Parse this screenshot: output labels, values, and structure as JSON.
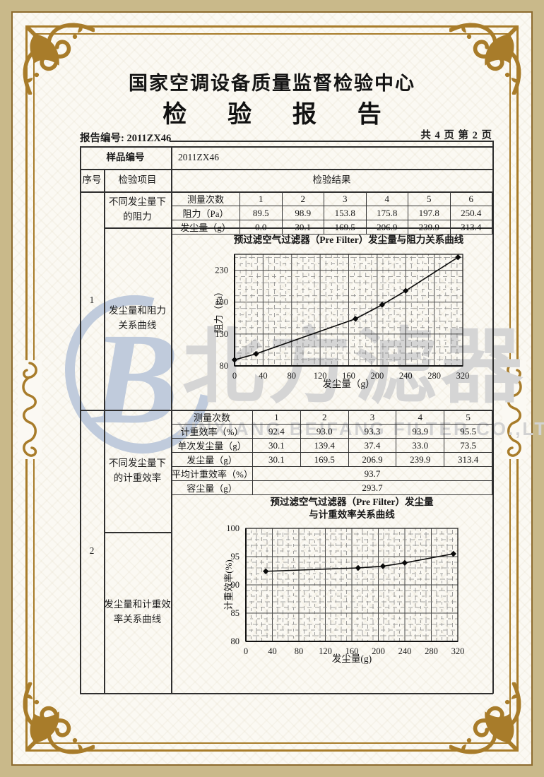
{
  "header": {
    "center_name": "国家空调设备质量监督检验中心",
    "report_title": "检 验 报 告",
    "report_no_label": "报告编号:",
    "report_no": "2011ZX46",
    "page_info": "共 4 页 第 2 页"
  },
  "sample_row": {
    "label": "样品编号",
    "value": "2011ZX46"
  },
  "columns": {
    "seq": "序号",
    "item": "检验项目",
    "result": "检验结果"
  },
  "sections": [
    {
      "seq": "1",
      "item_top": "不同发尘量下\n的阻力",
      "item_bottom": "发尘量和阻力\n关系曲线"
    },
    {
      "seq": "2",
      "item_top": "不同发尘量下\n的计重效率",
      "item_bottom": "发尘量和计重效\n率关系曲线"
    }
  ],
  "resist_table": {
    "rows": [
      {
        "label": "测量次数",
        "cells": [
          "1",
          "2",
          "3",
          "4",
          "5",
          "6"
        ]
      },
      {
        "label": "阻力（Pa）",
        "cells": [
          "89.5",
          "98.9",
          "153.8",
          "175.8",
          "197.8",
          "250.4"
        ]
      },
      {
        "label": "发尘量（g）",
        "cells": [
          "0.0",
          "30.1",
          "169.5",
          "206.9",
          "239.9",
          "313.4"
        ]
      }
    ]
  },
  "eff_table": {
    "rows": [
      {
        "label": "测量次数",
        "cells": [
          "1",
          "2",
          "3",
          "4",
          "5"
        ]
      },
      {
        "label": "计重效率（%）",
        "cells": [
          "92.4",
          "93.0",
          "93.3",
          "93.9",
          "95.5"
        ]
      },
      {
        "label": "单次发尘量（g）",
        "cells": [
          "30.1",
          "139.4",
          "37.4",
          "33.0",
          "73.5"
        ]
      },
      {
        "label": "发尘量（g）",
        "cells": [
          "30.1",
          "169.5",
          "206.9",
          "239.9",
          "313.4"
        ]
      }
    ],
    "avg_label": "平均计重效率（%）",
    "avg_value": "93.7",
    "capacity_label": "容尘量（g）",
    "capacity_value": "293.7"
  },
  "chart_data": [
    {
      "type": "line",
      "title": "预过滤空气过滤器（Pre Filter）发尘量与阻力关系曲线",
      "title_lines": [
        "预过滤空气过滤器（Pre Filter）发尘量与阻力关系曲线"
      ],
      "xlabel": "发尘量（g）",
      "ylabel": "阻力（Pa）",
      "x": [
        0,
        30.1,
        169.5,
        206.9,
        239.9,
        313.4
      ],
      "y": [
        89.5,
        98.9,
        153.8,
        175.8,
        197.8,
        250.4
      ],
      "xlim": [
        0,
        320
      ],
      "ylim": [
        80,
        255
      ],
      "xticks": [
        0,
        40,
        80,
        120,
        160,
        200,
        240,
        280,
        320
      ],
      "yticks": [
        80,
        130,
        180,
        230
      ],
      "grid": true,
      "legend_position": "none",
      "marker": "diamond"
    },
    {
      "type": "line",
      "title": "预过滤空气过滤器（Pre Filter）发尘量与计重效率关系曲线",
      "title_lines": [
        "预过滤空气过滤器（Pre Filter）发尘量",
        "与计重效率关系曲线"
      ],
      "xlabel": "发尘量(g)",
      "ylabel": "计重效率(%)",
      "x": [
        30.1,
        169.5,
        206.9,
        239.9,
        313.4
      ],
      "y": [
        92.4,
        93.0,
        93.3,
        93.9,
        95.5
      ],
      "xlim": [
        0,
        320
      ],
      "ylim": [
        80,
        100
      ],
      "xticks": [
        0,
        40,
        80,
        120,
        160,
        200,
        240,
        280,
        320
      ],
      "yticks": [
        80,
        85,
        90,
        95,
        100
      ],
      "grid": true,
      "legend_position": "none",
      "marker": "diamond"
    }
  ],
  "watermark": {
    "logo_letter": "B",
    "cn_text": "北方滤器",
    "en_text": "XINXIANG BEIFANG FILTER CO.,LTD."
  }
}
